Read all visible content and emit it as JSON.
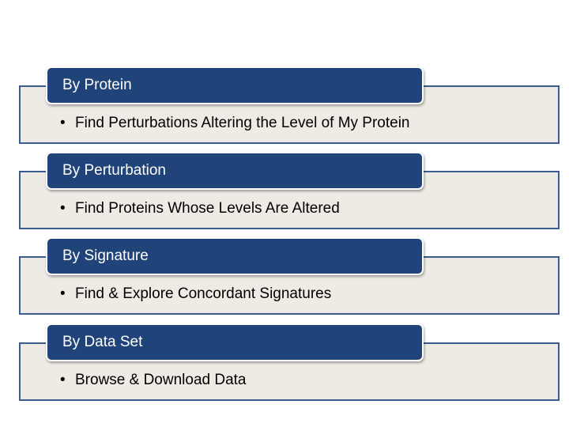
{
  "cards": [
    {
      "title": "By Protein",
      "bullet": "Find Perturbations Altering the Level of My Protein"
    },
    {
      "title": "By Perturbation",
      "bullet": "Find Proteins Whose Levels Are Altered"
    },
    {
      "title": "By Signature",
      "bullet": "Find & Explore Concordant Signatures"
    },
    {
      "title": "By Data Set",
      "bullet": "Browse & Download Data"
    }
  ],
  "colors": {
    "header_fill": "#204479",
    "body_fill": "#eeebe5",
    "border": "#3a5c8f"
  }
}
